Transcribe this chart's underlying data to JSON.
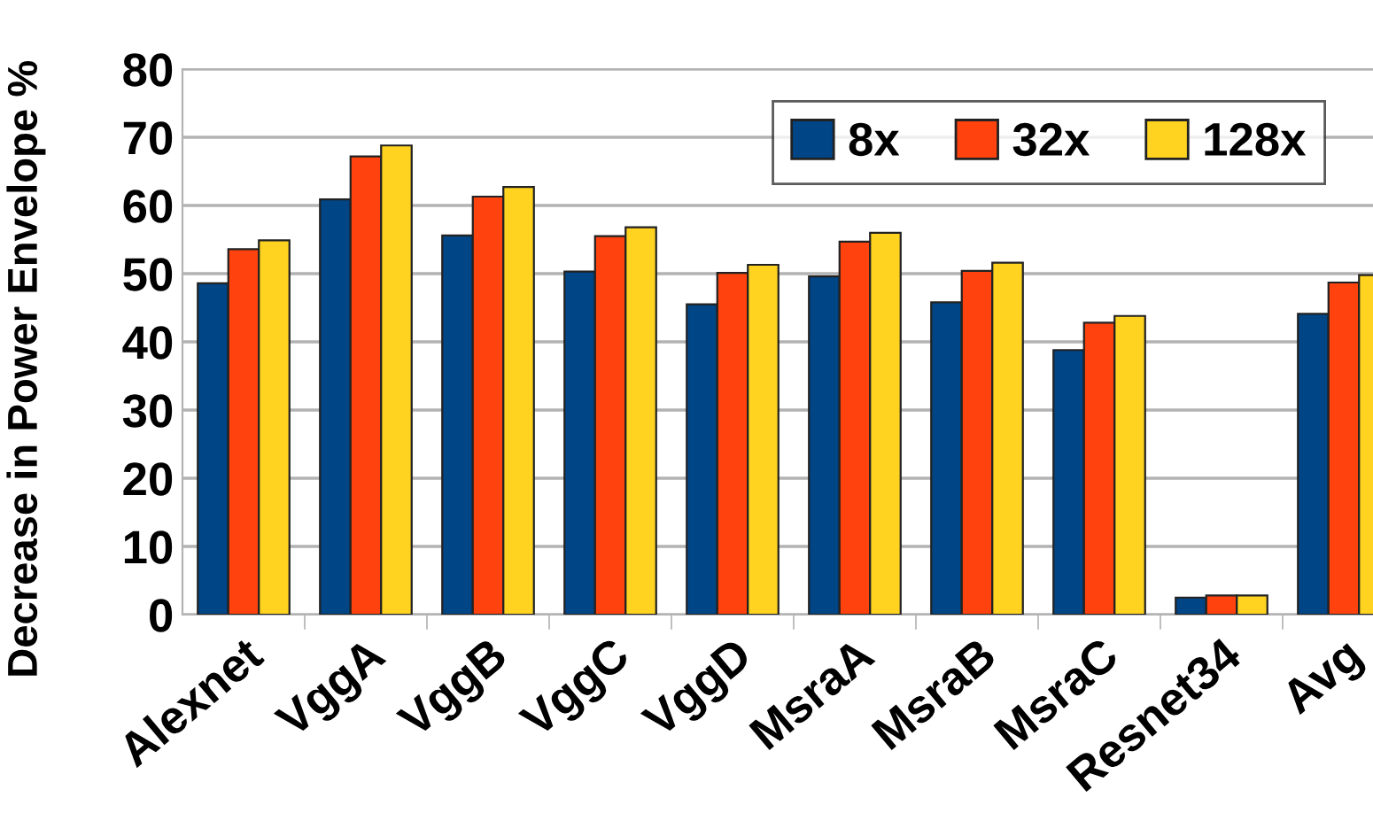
{
  "chart_data": {
    "type": "bar",
    "ylabel": "Decrease in Power Envelope %",
    "categories": [
      "Alexnet",
      "VggA",
      "VggB",
      "VggC",
      "VggD",
      "MsraA",
      "MsraB",
      "MsraC",
      "Resnet34",
      "Avg"
    ],
    "series": [
      {
        "name": "8x",
        "color": "#004586",
        "values": [
          48.6,
          60.9,
          55.6,
          50.3,
          45.5,
          49.6,
          45.8,
          38.8,
          2.5,
          44.1
        ]
      },
      {
        "name": "32x",
        "color": "#ff420e",
        "values": [
          53.6,
          67.2,
          61.3,
          55.5,
          50.1,
          54.7,
          50.4,
          42.8,
          2.8,
          48.7
        ]
      },
      {
        "name": "128x",
        "color": "#ffd320",
        "values": [
          54.9,
          68.8,
          62.7,
          56.8,
          51.3,
          56.0,
          51.6,
          43.8,
          2.8,
          49.8
        ]
      }
    ],
    "ylim": [
      0,
      80
    ],
    "yticks": [
      0,
      10,
      20,
      30,
      40,
      50,
      60,
      70,
      80
    ],
    "grid": "y",
    "legend": "top right"
  }
}
